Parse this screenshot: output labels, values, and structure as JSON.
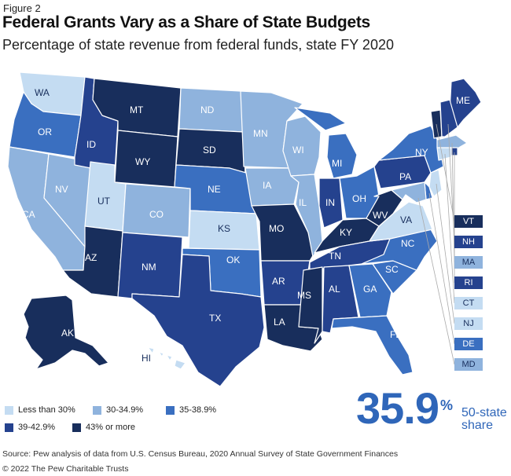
{
  "figure_label": "Figure 2",
  "title": "Federal Grants Vary as a Share of State Budgets",
  "subtitle": "Percentage of state revenue from federal funds, state FY 2020",
  "colors": {
    "c1": "#c4dcf2",
    "c2": "#8fb3dd",
    "c3": "#3a6fc0",
    "c4": "#25428e",
    "c5": "#182e5c"
  },
  "legend": {
    "items": [
      {
        "key": "c1",
        "label": "Less than 30%"
      },
      {
        "key": "c2",
        "label": "30-34.9%"
      },
      {
        "key": "c3",
        "label": "35-38.9%"
      },
      {
        "key": "c4",
        "label": "39-42.9%"
      },
      {
        "key": "c5",
        "label": "43% or more"
      }
    ]
  },
  "summary": {
    "value": "35.9",
    "unit": "%",
    "label_line1": "50-state",
    "label_line2": "share"
  },
  "states": {
    "WA": "c1",
    "OR": "c3",
    "CA": "c2",
    "NV": "c2",
    "ID": "c4",
    "MT": "c5",
    "WY": "c5",
    "UT": "c1",
    "AZ": "c5",
    "CO": "c2",
    "NM": "c4",
    "ND": "c2",
    "SD": "c5",
    "NE": "c3",
    "KS": "c1",
    "OK": "c3",
    "TX": "c4",
    "MN": "c2",
    "IA": "c2",
    "MO": "c5",
    "AR": "c4",
    "LA": "c5",
    "WI": "c2",
    "IL": "c2",
    "MI": "c3",
    "IN": "c4",
    "OH": "c3",
    "KY": "c5",
    "TN": "c4",
    "MS": "c5",
    "AL": "c4",
    "GA": "c3",
    "FL": "c3",
    "SC": "c3",
    "NC": "c3",
    "VA": "c1",
    "WV": "c5",
    "PA": "c4",
    "NY": "c3",
    "ME": "c4",
    "VT": "c5",
    "NH": "c4",
    "MA": "c2",
    "RI": "c4",
    "CT": "c1",
    "NJ": "c1",
    "DE": "c3",
    "MD": "c2",
    "AK": "c5",
    "HI": "c1"
  },
  "ne_boxes": [
    "VT",
    "NH",
    "MA",
    "RI",
    "CT",
    "NJ",
    "DE",
    "MD"
  ],
  "source": "Source: Pew analysis of data from U.S. Census Bureau, 2020 Annual Survey of State Government Finances",
  "copyright": "© 2022 The Pew Charitable Trusts"
}
